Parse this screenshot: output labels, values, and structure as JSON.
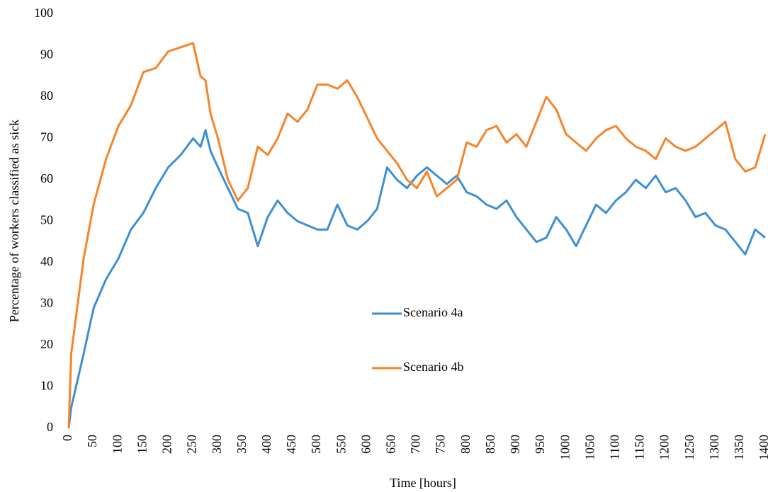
{
  "chart_data": {
    "type": "line",
    "x_label": "Time [hours]",
    "y_label": "Percentage of workers classified as sick",
    "x": [
      0,
      5,
      30,
      50,
      75,
      100,
      125,
      150,
      175,
      200,
      225,
      250,
      265,
      275,
      285,
      300,
      320,
      340,
      360,
      380,
      400,
      420,
      440,
      460,
      480,
      500,
      520,
      540,
      560,
      580,
      600,
      620,
      640,
      660,
      680,
      700,
      720,
      740,
      760,
      780,
      800,
      820,
      840,
      860,
      880,
      900,
      920,
      940,
      960,
      980,
      1000,
      1020,
      1040,
      1060,
      1080,
      1100,
      1120,
      1140,
      1160,
      1180,
      1200,
      1220,
      1240,
      1260,
      1280,
      1300,
      1320,
      1340,
      1360,
      1380,
      1400
    ],
    "series": [
      {
        "name": "Scenario 4a",
        "color": "#3d8fd4",
        "values": [
          0,
          5,
          18,
          29,
          36,
          41,
          48,
          52,
          58,
          63,
          66,
          70,
          68,
          72,
          67,
          63,
          58,
          53,
          52,
          44,
          51,
          55,
          52,
          50,
          49,
          48,
          48,
          54,
          49,
          48,
          50,
          53,
          63,
          60,
          58,
          61,
          63,
          61,
          59,
          61,
          57,
          56,
          54,
          53,
          55,
          51,
          48,
          45,
          46,
          51,
          48,
          44,
          49,
          54,
          52,
          55,
          57,
          60,
          58,
          61,
          57,
          58,
          55,
          51,
          52,
          49,
          48,
          45,
          42,
          48,
          46
        ]
      },
      {
        "name": "Scenario 4b",
        "color": "#f5842a",
        "values": [
          0,
          18,
          41,
          54,
          65,
          73,
          78,
          86,
          87,
          91,
          92,
          93,
          85,
          84,
          76,
          70,
          60,
          55,
          58,
          68,
          66,
          70,
          76,
          74,
          77,
          83,
          83,
          82,
          84,
          80,
          75,
          70,
          67,
          64,
          60,
          58,
          62,
          56,
          58,
          60,
          69,
          68,
          72,
          73,
          69,
          71,
          68,
          74,
          80,
          77,
          71,
          69,
          67,
          70,
          72,
          73,
          70,
          68,
          67,
          65,
          70,
          68,
          67,
          68,
          70,
          72,
          74,
          65,
          62,
          63,
          71
        ]
      }
    ],
    "xlim": [
      0,
      1400
    ],
    "xticks": [
      0,
      50,
      100,
      150,
      200,
      250,
      300,
      350,
      400,
      450,
      500,
      550,
      600,
      650,
      700,
      750,
      800,
      850,
      900,
      950,
      1000,
      1050,
      1100,
      1150,
      1200,
      1250,
      1300,
      1350,
      1400
    ],
    "ylim": [
      0,
      100
    ],
    "yticks": [
      0,
      10,
      20,
      30,
      40,
      50,
      60,
      70,
      80,
      90,
      100
    ],
    "grid": false,
    "legend": "center"
  }
}
